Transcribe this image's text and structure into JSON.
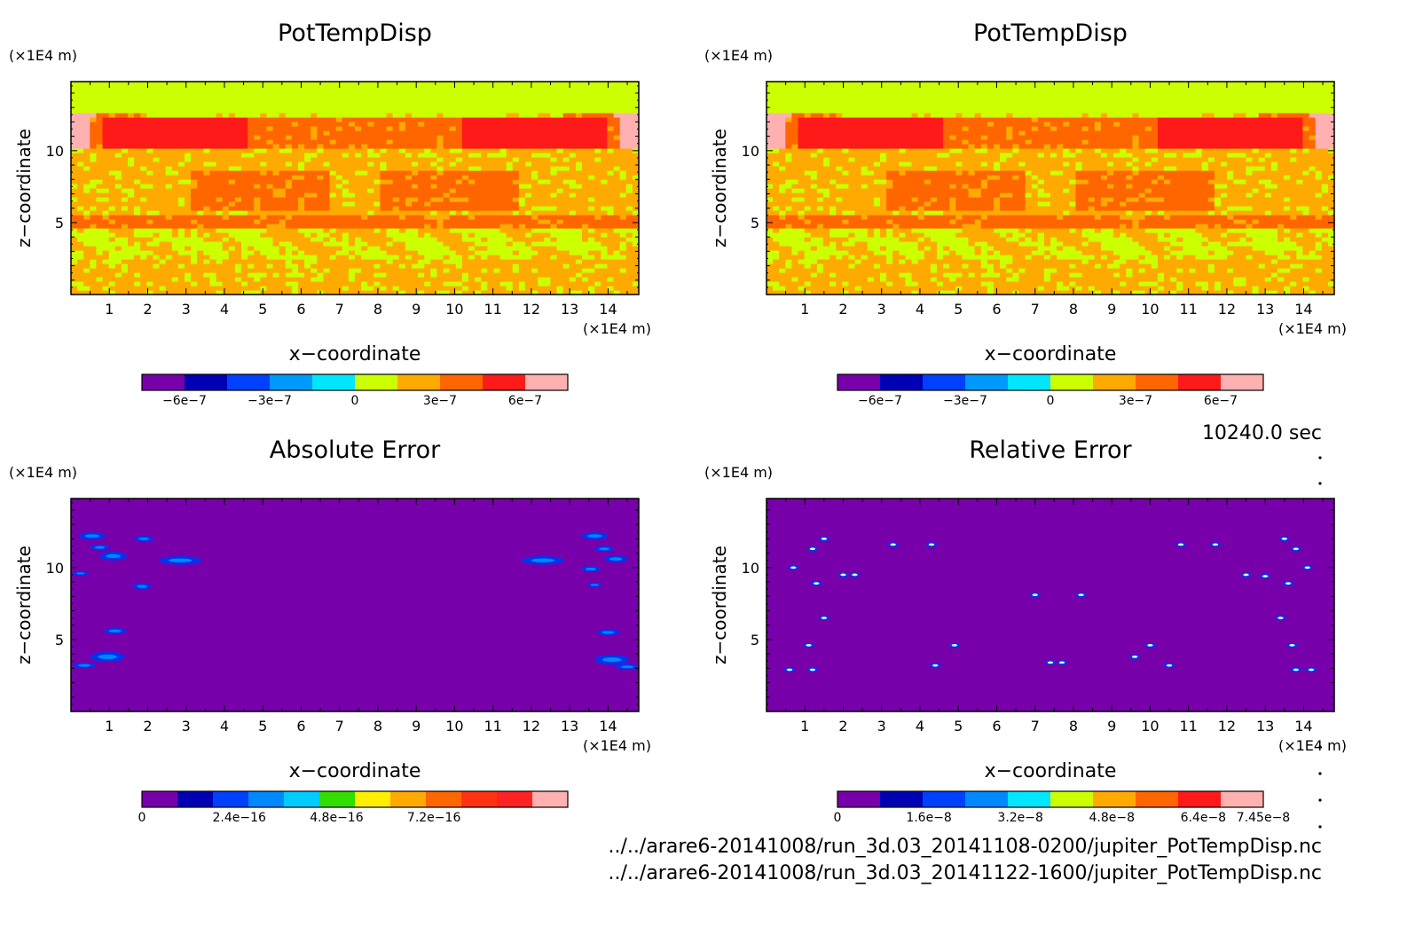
{
  "time_label": "10240.0 sec",
  "files": [
    "../../arare6-20141008/run_3d.03_20141108-0200/jupiter_PotTempDisp.nc",
    "../../arare6-20141008/run_3d.03_20141122-1600/jupiter_PotTempDisp.nc"
  ],
  "chart_data": [
    {
      "type": "heatmap",
      "title": "PotTempDisp",
      "xlabel": "x−coordinate",
      "ylabel": "z−coordinate",
      "x_unit": "(×1E4 m)",
      "y_unit": "(×1E4 m)",
      "xlim": [
        0,
        14.8
      ],
      "ylim": [
        0,
        14.8
      ],
      "x_ticks": [
        1,
        2,
        3,
        4,
        5,
        6,
        7,
        8,
        9,
        10,
        11,
        12,
        13,
        14
      ],
      "y_ticks": [
        5,
        10
      ],
      "field_pattern": "potential-temperature",
      "colorbar": {
        "colors": [
          "#7700aa",
          "#0000b4",
          "#0040ff",
          "#0099ff",
          "#00e6ff",
          "#ccff00",
          "#ffaa00",
          "#ff6600",
          "#ff1a1a",
          "#ffb0b0"
        ],
        "tick_values": [
          -6e-07,
          -3e-07,
          0,
          3e-07,
          6e-07
        ],
        "tick_labels": [
          "−6e−7",
          "−3e−7",
          "0",
          "3e−7",
          "6e−7"
        ],
        "range": [
          -7.5e-07,
          7.5e-07
        ]
      }
    },
    {
      "type": "heatmap",
      "title": "PotTempDisp",
      "xlabel": "x−coordinate",
      "ylabel": "z−coordinate",
      "x_unit": "(×1E4 m)",
      "y_unit": "(×1E4 m)",
      "xlim": [
        0,
        14.8
      ],
      "ylim": [
        0,
        14.8
      ],
      "x_ticks": [
        1,
        2,
        3,
        4,
        5,
        6,
        7,
        8,
        9,
        10,
        11,
        12,
        13,
        14
      ],
      "y_ticks": [
        5,
        10
      ],
      "field_pattern": "potential-temperature",
      "colorbar": {
        "colors": [
          "#7700aa",
          "#0000b4",
          "#0040ff",
          "#0099ff",
          "#00e6ff",
          "#ccff00",
          "#ffaa00",
          "#ff6600",
          "#ff1a1a",
          "#ffb0b0"
        ],
        "tick_values": [
          -6e-07,
          -3e-07,
          0,
          3e-07,
          6e-07
        ],
        "tick_labels": [
          "−6e−7",
          "−3e−7",
          "0",
          "3e−7",
          "6e−7"
        ],
        "range": [
          -7.5e-07,
          7.5e-07
        ]
      }
    },
    {
      "type": "heatmap",
      "title": "Absolute Error",
      "xlabel": "x−coordinate",
      "ylabel": "z−coordinate",
      "x_unit": "(×1E4 m)",
      "y_unit": "(×1E4 m)",
      "xlim": [
        0,
        14.8
      ],
      "ylim": [
        0,
        14.8
      ],
      "x_ticks": [
        1,
        2,
        3,
        4,
        5,
        6,
        7,
        8,
        9,
        10,
        11,
        12,
        13,
        14
      ],
      "y_ticks": [
        5,
        10
      ],
      "background_color": "#7700aa",
      "field_pattern": "absolute-error",
      "error_spots": [
        {
          "x": 0.55,
          "z": 12.2,
          "w": 0.35,
          "h": 0.25
        },
        {
          "x": 0.75,
          "z": 11.4,
          "w": 0.25,
          "h": 0.2
        },
        {
          "x": 1.9,
          "z": 12.0,
          "w": 0.25,
          "h": 0.2
        },
        {
          "x": 1.1,
          "z": 10.8,
          "w": 0.35,
          "h": 0.3
        },
        {
          "x": 2.85,
          "z": 10.5,
          "w": 0.55,
          "h": 0.3
        },
        {
          "x": 1.85,
          "z": 8.7,
          "w": 0.25,
          "h": 0.2
        },
        {
          "x": 0.25,
          "z": 9.6,
          "w": 0.2,
          "h": 0.15
        },
        {
          "x": 1.15,
          "z": 5.6,
          "w": 0.3,
          "h": 0.2
        },
        {
          "x": 0.95,
          "z": 3.8,
          "w": 0.45,
          "h": 0.35
        },
        {
          "x": 0.35,
          "z": 3.2,
          "w": 0.3,
          "h": 0.2
        },
        {
          "x": 12.3,
          "z": 10.5,
          "w": 0.55,
          "h": 0.3
        },
        {
          "x": 13.65,
          "z": 12.2,
          "w": 0.35,
          "h": 0.25
        },
        {
          "x": 13.9,
          "z": 11.3,
          "w": 0.25,
          "h": 0.2
        },
        {
          "x": 14.2,
          "z": 10.6,
          "w": 0.3,
          "h": 0.25
        },
        {
          "x": 13.55,
          "z": 9.9,
          "w": 0.25,
          "h": 0.2
        },
        {
          "x": 13.65,
          "z": 8.8,
          "w": 0.2,
          "h": 0.15
        },
        {
          "x": 14.0,
          "z": 5.5,
          "w": 0.3,
          "h": 0.2
        },
        {
          "x": 14.1,
          "z": 3.6,
          "w": 0.45,
          "h": 0.35
        },
        {
          "x": 14.5,
          "z": 3.1,
          "w": 0.3,
          "h": 0.2
        }
      ],
      "colorbar": {
        "colors": [
          "#7700aa",
          "#0000b4",
          "#0040ff",
          "#0088ff",
          "#00ccff",
          "#33dd00",
          "#ffee00",
          "#ffaa00",
          "#ff6600",
          "#ff3311",
          "#ff2222",
          "#ffb0b0"
        ],
        "tick_values": [
          0,
          2.4e-16,
          4.8e-16,
          7.2e-16
        ],
        "tick_labels": [
          "0",
          "2.4e−16",
          "4.8e−16",
          "7.2e−16"
        ],
        "range": [
          0,
          1.05e-15
        ]
      }
    },
    {
      "type": "heatmap",
      "title": "Relative Error",
      "xlabel": "x−coordinate",
      "ylabel": "z−coordinate",
      "x_unit": "(×1E4 m)",
      "y_unit": "(×1E4 m)",
      "xlim": [
        0,
        14.8
      ],
      "ylim": [
        0,
        14.8
      ],
      "x_ticks": [
        1,
        2,
        3,
        4,
        5,
        6,
        7,
        8,
        9,
        10,
        11,
        12,
        13,
        14
      ],
      "y_ticks": [
        5,
        10
      ],
      "background_color": "#7700aa",
      "field_pattern": "relative-error",
      "error_spots": [
        {
          "x": 3.3,
          "z": 11.6
        },
        {
          "x": 4.3,
          "z": 11.6
        },
        {
          "x": 11.7,
          "z": 11.6
        },
        {
          "x": 10.8,
          "z": 11.6
        },
        {
          "x": 1.2,
          "z": 11.3
        },
        {
          "x": 1.5,
          "z": 12.0
        },
        {
          "x": 13.5,
          "z": 12.0
        },
        {
          "x": 13.8,
          "z": 11.3
        },
        {
          "x": 0.7,
          "z": 10.0
        },
        {
          "x": 14.1,
          "z": 10.0
        },
        {
          "x": 2.0,
          "z": 9.5
        },
        {
          "x": 2.3,
          "z": 9.5
        },
        {
          "x": 13.0,
          "z": 9.4
        },
        {
          "x": 12.5,
          "z": 9.5
        },
        {
          "x": 1.3,
          "z": 8.9
        },
        {
          "x": 13.6,
          "z": 8.9
        },
        {
          "x": 7.0,
          "z": 8.1
        },
        {
          "x": 8.2,
          "z": 8.1
        },
        {
          "x": 1.5,
          "z": 6.5
        },
        {
          "x": 13.4,
          "z": 6.5
        },
        {
          "x": 1.1,
          "z": 4.6
        },
        {
          "x": 13.7,
          "z": 4.6
        },
        {
          "x": 4.9,
          "z": 4.6
        },
        {
          "x": 10.0,
          "z": 4.6
        },
        {
          "x": 0.6,
          "z": 2.9
        },
        {
          "x": 1.2,
          "z": 2.9
        },
        {
          "x": 13.8,
          "z": 2.9
        },
        {
          "x": 14.2,
          "z": 2.9
        },
        {
          "x": 7.4,
          "z": 3.4
        },
        {
          "x": 7.7,
          "z": 3.4
        },
        {
          "x": 4.4,
          "z": 3.2
        },
        {
          "x": 10.5,
          "z": 3.2
        },
        {
          "x": 9.6,
          "z": 3.8
        }
      ],
      "colorbar": {
        "colors": [
          "#7700aa",
          "#0000b4",
          "#0040ff",
          "#0088ff",
          "#00e6ff",
          "#ccff00",
          "#ffaa00",
          "#ff6600",
          "#ff1a1a",
          "#ffb0b0"
        ],
        "tick_values": [
          0,
          1.6e-08,
          3.2e-08,
          4.8e-08,
          6.4e-08,
          7.45e-08
        ],
        "tick_labels": [
          "0",
          "1.6e−8",
          "3.2e−8",
          "4.8e−8",
          "6.4e−8",
          "7.45e−8"
        ],
        "range": [
          0,
          7.45e-08
        ]
      }
    }
  ]
}
